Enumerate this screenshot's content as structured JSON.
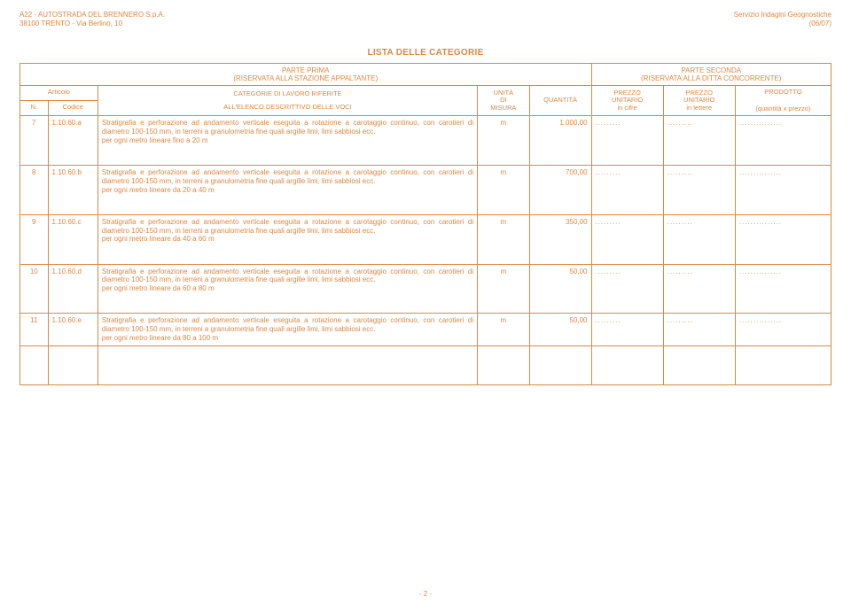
{
  "header": {
    "company_line1": "A22 - AUTOSTRADA DEL BRENNERO S.p.A.",
    "company_line2": "38100 TRENTO - Via Berlino, 10",
    "right_line1": "Servizio Indagini Geognostiche",
    "right_line2": "(06/07)"
  },
  "title": "LISTA DELLE CATEGORIE",
  "table_header": {
    "parte_prima": "PARTE PRIMA",
    "parte_prima_sub": "(RISERVATA ALLA STAZIONE APPALTANTE)",
    "parte_seconda": "PARTE SECONDA",
    "parte_seconda_sub": "(RISERVATA ALLA DITTA CONCORRENTE)",
    "articolo": "Articolo",
    "n": "N.",
    "codice": "Codice",
    "categorie": "CATEGORIE DI LAVORO RIFERITE",
    "elenco": "ALL'ELENCO DESCRITTIVO DELLE VOCI",
    "unita": "UNITÀ",
    "di": "DI",
    "misura": "MISURA",
    "quantita": "QUANTITÀ",
    "prezzo": "PREZZO",
    "unitario": "UNITARIO",
    "in_cifre": "in cifre",
    "in_lettere": "in lettere",
    "prodotto": "PRODOTTO",
    "qxp": "(quantità x prezzo)"
  },
  "rows": [
    {
      "n": "7",
      "code": "1.10.60.a",
      "desc": "Stratigrafia e perforazione ad andamento verticale eseguita a rotazione a carotaggio continuo, con carotieri di diametro 100-150 mm,   in terreni a granulometria fine quali argille limi, limi sabbiosi ecc.",
      "desc2": "per ogni metro lineare fino a 20 m",
      "um": "m",
      "qty": "1.000,00",
      "p1": ".........",
      "p2": ".........",
      "prod": "..............."
    },
    {
      "n": "8",
      "code": "1.10.60.b",
      "desc": "Stratigrafia e perforazione ad andamento verticale eseguita a rotazione a carotaggio continuo, con carotieri di diametro 100-150 mm,   in terreni a granulometria fine quali argille limi, limi sabbiosi ecc.",
      "desc2": "per ogni metro lineare da 20 a 40 m",
      "um": "m",
      "qty": "700,00",
      "p1": ".........",
      "p2": ".........",
      "prod": "..............."
    },
    {
      "n": "9",
      "code": "1.10.60.c",
      "desc": "Stratigrafia e perforazione ad andamento verticale eseguita a rotazione a carotaggio continuo, con carotieri di diametro 100-150 mm,   in terreni a granulometria fine quali argille limi, limi sabbiosi ecc.",
      "desc2": "per ogni metro lineare da 40 a 60 m",
      "um": "m",
      "qty": "350,00",
      "p1": ".........",
      "p2": ".........",
      "prod": "..............."
    },
    {
      "n": "10",
      "code": "1.10.60.d",
      "desc": "Stratigrafia e perforazione ad andamento verticale eseguita a rotazione a carotaggio continuo, con carotieri di diametro 100-150 mm,   in terreni a granulometria fine quali argille limi, limi sabbiosi ecc.",
      "desc2": "per ogni metro lineare da 60 a 80 m",
      "um": "m",
      "qty": "50,00",
      "p1": ".........",
      "p2": ".........",
      "prod": "..............."
    },
    {
      "n": "11",
      "code": "1.10.60.e",
      "desc": "Stratigrafia e perforazione ad andamento verticale eseguita a rotazione a carotaggio continuo, con carotieri di diametro 100-150 mm,   in terreni a granulometria fine quali argille limi, limi sabbiosi ecc.",
      "desc2": "per ogni metro lineare da 80 a 100 m",
      "um": "m",
      "qty": "50,00",
      "p1": ".........",
      "p2": ".........",
      "prod": "..............."
    }
  ],
  "footer": "- 2 -"
}
